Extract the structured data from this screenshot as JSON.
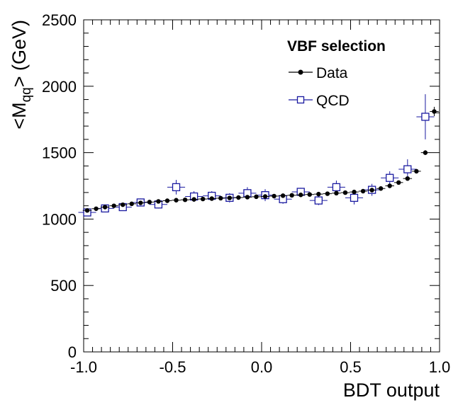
{
  "chart_data": {
    "type": "scatter",
    "xlabel": "BDT output",
    "ylabel": "<M",
    "ylabel_sub": "qq",
    "ylabel_suffix": "> (GeV)",
    "xlim": [
      -1.0,
      1.0
    ],
    "ylim": [
      0,
      2500
    ],
    "x_ticks": [
      "-1.0",
      "-0.5",
      "0.0",
      "0.5",
      "1.0"
    ],
    "y_ticks": [
      "0",
      "500",
      "1000",
      "1500",
      "2000",
      "2500"
    ],
    "legend": {
      "title": "VBF selection",
      "position": "top-right",
      "entries": [
        "Data",
        "QCD"
      ]
    },
    "colors": {
      "data": "#000000",
      "qcd": "#1a1aa0"
    },
    "series": [
      {
        "name": "Data",
        "marker": "filled-circle",
        "x": [
          -0.98,
          -0.93,
          -0.88,
          -0.83,
          -0.78,
          -0.73,
          -0.68,
          -0.63,
          -0.58,
          -0.53,
          -0.48,
          -0.43,
          -0.38,
          -0.33,
          -0.28,
          -0.23,
          -0.18,
          -0.13,
          -0.08,
          -0.03,
          0.02,
          0.07,
          0.12,
          0.17,
          0.22,
          0.27,
          0.32,
          0.37,
          0.42,
          0.47,
          0.52,
          0.57,
          0.62,
          0.67,
          0.72,
          0.77,
          0.82,
          0.87,
          0.92,
          0.97
        ],
        "y": [
          1065,
          1078,
          1090,
          1100,
          1108,
          1115,
          1122,
          1128,
          1133,
          1138,
          1142,
          1145,
          1148,
          1151,
          1154,
          1157,
          1159,
          1162,
          1165,
          1168,
          1170,
          1173,
          1176,
          1179,
          1182,
          1185,
          1188,
          1191,
          1195,
          1199,
          1204,
          1210,
          1218,
          1230,
          1250,
          1275,
          1305,
          1360,
          1500,
          1810
        ],
        "yerr": [
          5,
          5,
          5,
          5,
          5,
          5,
          5,
          5,
          5,
          5,
          5,
          5,
          5,
          5,
          5,
          5,
          5,
          5,
          5,
          5,
          5,
          5,
          5,
          5,
          5,
          5,
          5,
          5,
          5,
          5,
          5,
          5,
          5,
          5,
          5,
          6,
          8,
          12,
          18,
          35
        ]
      },
      {
        "name": "QCD",
        "marker": "open-square",
        "x": [
          -0.98,
          -0.88,
          -0.78,
          -0.68,
          -0.58,
          -0.48,
          -0.38,
          -0.28,
          -0.18,
          -0.08,
          0.02,
          0.12,
          0.22,
          0.32,
          0.42,
          0.52,
          0.62,
          0.72,
          0.82,
          0.92
        ],
        "y": [
          1050,
          1080,
          1090,
          1125,
          1110,
          1240,
          1170,
          1175,
          1160,
          1195,
          1180,
          1150,
          1205,
          1140,
          1240,
          1160,
          1220,
          1310,
          1375,
          1770
        ],
        "yerr": [
          25,
          25,
          25,
          30,
          30,
          55,
          40,
          35,
          35,
          45,
          45,
          35,
          30,
          35,
          50,
          50,
          45,
          50,
          75,
          170
        ]
      }
    ]
  }
}
